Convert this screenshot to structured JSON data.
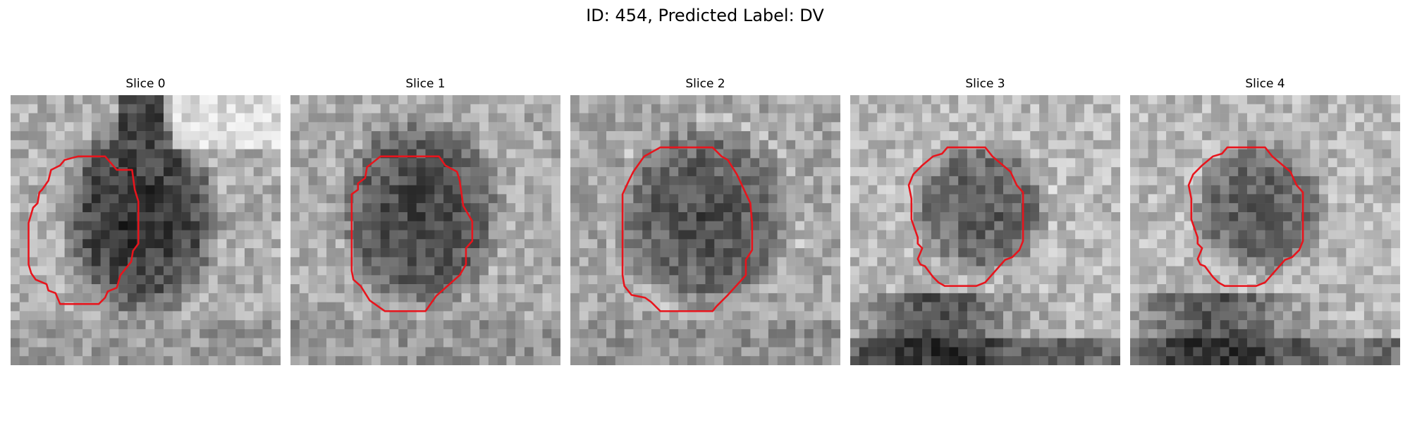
{
  "figure": {
    "title": "ID: 454, Predicted Label: DV"
  },
  "slices": [
    {
      "title": "Slice 0"
    },
    {
      "title": "Slice 1"
    },
    {
      "title": "Slice 2"
    },
    {
      "title": "Slice 3"
    },
    {
      "title": "Slice 4"
    }
  ],
  "colors": {
    "contour": "#e8141c",
    "background": "#ffffff"
  }
}
